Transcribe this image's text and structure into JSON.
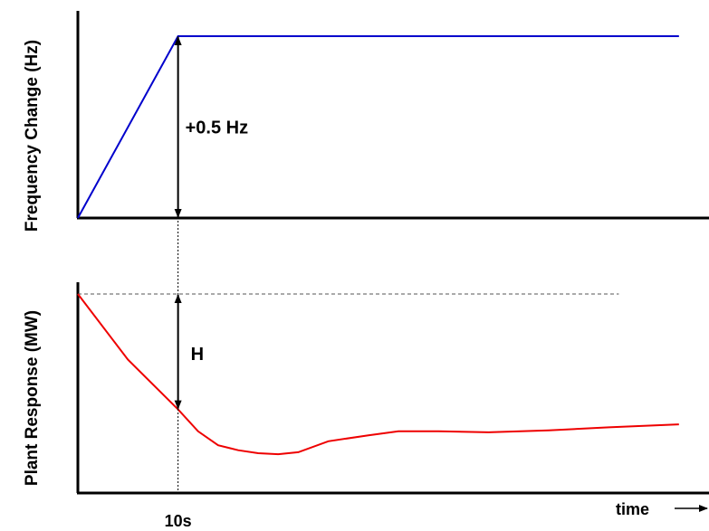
{
  "chart_data": [
    {
      "type": "line",
      "ylabel": "Frequency Change (Hz)",
      "xlim": [
        0,
        63
      ],
      "ylim": [
        0,
        0.5
      ],
      "series": [
        {
          "color": "#0000cc",
          "x": [
            0,
            10,
            60
          ],
          "y": [
            0,
            0.5,
            0.5
          ]
        }
      ],
      "annotations": [
        {
          "text": "+0.5 Hz",
          "x": 10,
          "y": 0.25,
          "kind": "double-arrow"
        }
      ]
    },
    {
      "type": "line",
      "ylabel": "Plant Response (MW)",
      "xlabel": "time",
      "xlim": [
        0,
        63
      ],
      "ylim": [
        0,
        1
      ],
      "x_tick_labels": [
        {
          "x": 10,
          "label": "10s"
        }
      ],
      "reference_line": {
        "y": 1.0,
        "style": "dashed",
        "x": [
          0,
          54
        ]
      },
      "series": [
        {
          "color": "#ee0000",
          "x": [
            0,
            5,
            10,
            12,
            14,
            16,
            18,
            20,
            22,
            25,
            29,
            32,
            36,
            41,
            47,
            53,
            60
          ],
          "y": [
            1.0,
            0.67,
            0.42,
            0.31,
            0.24,
            0.215,
            0.2,
            0.195,
            0.205,
            0.26,
            0.29,
            0.31,
            0.31,
            0.305,
            0.315,
            0.33,
            0.345
          ]
        }
      ],
      "annotations": [
        {
          "text": "H",
          "x": 10,
          "y": 0.7,
          "kind": "double-arrow"
        }
      ]
    }
  ]
}
